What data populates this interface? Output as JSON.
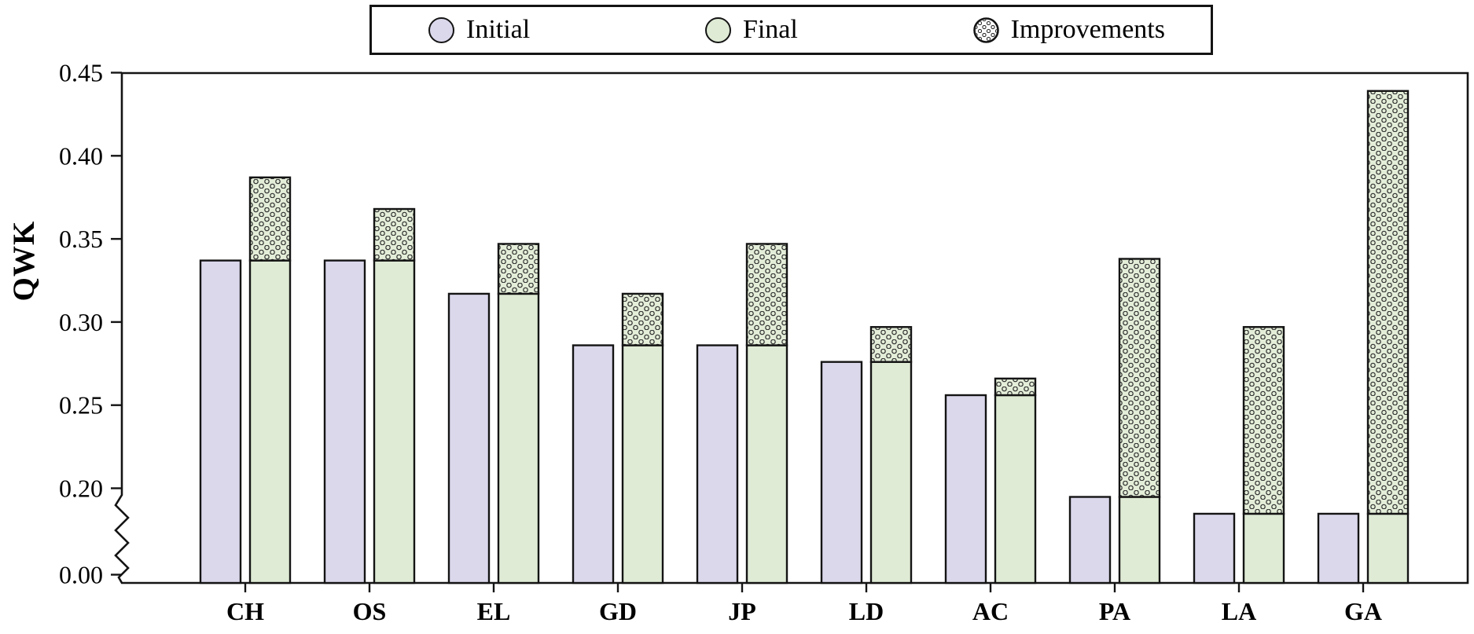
{
  "page": {
    "background": "#ffffff"
  },
  "legend": {
    "entries": [
      {
        "label": "Initial",
        "marker": "circle",
        "fill": "#DBD8EC"
      },
      {
        "label": "Final",
        "marker": "circle",
        "fill": "#DFEBD5"
      },
      {
        "label": "Improvements",
        "marker": "dotted-circle",
        "fill": "#FFFFFF"
      }
    ]
  },
  "axis": {
    "y_title": "QWK",
    "y_tick_labels": [
      "0.45",
      "0.40",
      "0.35",
      "0.30",
      "0.25",
      "0.20",
      "0.00"
    ],
    "y_tick_values": [
      0.45,
      0.4,
      0.35,
      0.3,
      0.25,
      0.2,
      0.0
    ]
  },
  "colors": {
    "initial_fill": "#DBD8EC",
    "final_fill": "#DFEBD5",
    "improvement_bg": "#E3EDD8",
    "dot_stroke": "#2f2f2f",
    "bar_border": "#141414",
    "text": "#000000"
  },
  "chart_data": {
    "type": "bar",
    "title": "",
    "xlabel": "",
    "ylabel": "QWK",
    "categories": [
      "CH",
      "OS",
      "EL",
      "GD",
      "JP",
      "LD",
      "AC",
      "PA",
      "LA",
      "GA"
    ],
    "series": [
      {
        "name": "Initial",
        "values": [
          0.337,
          0.337,
          0.317,
          0.286,
          0.286,
          0.276,
          0.256,
          0.18,
          0.141,
          0.141
        ]
      },
      {
        "name": "Final",
        "values": [
          0.387,
          0.368,
          0.347,
          0.317,
          0.347,
          0.297,
          0.266,
          0.338,
          0.297,
          0.439
        ]
      },
      {
        "name": "Improvements",
        "values": [
          0.05,
          0.031,
          0.03,
          0.031,
          0.061,
          0.021,
          0.01,
          0.158,
          0.156,
          0.298
        ]
      }
    ],
    "series_note": "Improvements = Final - Initial; drawn as a dotted segment stacked on top of the green Final bar, whose solid green part equals the Initial value",
    "ylim": [
      0,
      0.45
    ],
    "y_ticks": [
      0.0,
      0.2,
      0.25,
      0.3,
      0.35,
      0.4,
      0.45
    ],
    "axis_break": {
      "between": [
        0.0,
        0.2
      ],
      "style": "zigzag"
    },
    "grid": false,
    "legend_position": "top-center"
  }
}
